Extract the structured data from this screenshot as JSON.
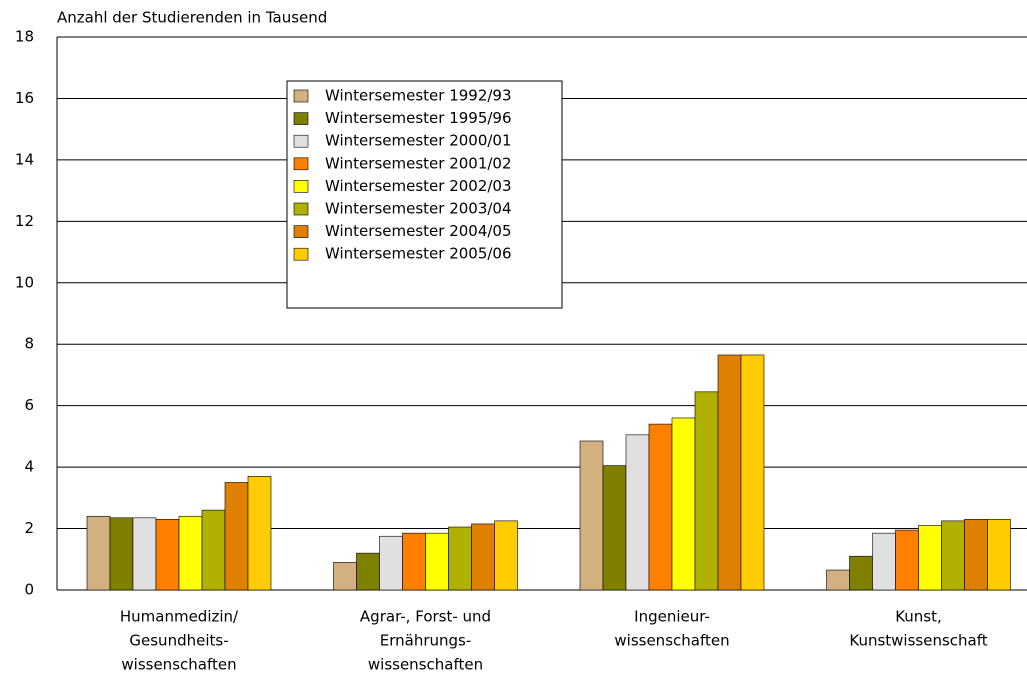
{
  "chart_data": {
    "type": "bar",
    "y_label": "Anzahl der Studierenden in Tausend",
    "categories": [
      [
        "Humanmedizin/",
        "Gesundheits-",
        "wissenschaften"
      ],
      [
        "Agrar-, Forst- und",
        "Ernährungs-",
        "wissenschaften"
      ],
      [
        "Ingenieur-",
        "wissenschaften"
      ],
      [
        "Kunst,",
        "Kunstwissenschaft"
      ]
    ],
    "series": [
      {
        "name": "Wintersemester 1992/93",
        "color": "#d2b080",
        "values": [
          2.4,
          0.9,
          4.85,
          0.65
        ]
      },
      {
        "name": "Wintersemester 1995/96",
        "color": "#808000",
        "values": [
          2.35,
          1.2,
          4.05,
          1.1
        ]
      },
      {
        "name": "Wintersemester 2000/01",
        "color": "#e0e0e0",
        "values": [
          2.35,
          1.75,
          5.05,
          1.85
        ]
      },
      {
        "name": "Wintersemester 2001/02",
        "color": "#ff8000",
        "values": [
          2.3,
          1.85,
          5.4,
          1.95
        ]
      },
      {
        "name": "Wintersemester 2002/03",
        "color": "#ffff00",
        "values": [
          2.4,
          1.85,
          5.6,
          2.1
        ]
      },
      {
        "name": "Wintersemester 2003/04",
        "color": "#b0b000",
        "values": [
          2.6,
          2.05,
          6.45,
          2.25
        ]
      },
      {
        "name": "Wintersemester 2004/05",
        "color": "#e08000",
        "values": [
          3.5,
          2.15,
          7.65,
          2.3
        ]
      },
      {
        "name": "Wintersemester 2005/06",
        "color": "#ffcc00",
        "values": [
          3.7,
          2.25,
          7.65,
          2.3
        ]
      }
    ],
    "ylim": [
      0,
      18
    ],
    "yticks": [
      0,
      2,
      4,
      6,
      8,
      10,
      12,
      14,
      16,
      18
    ],
    "grid": true
  }
}
